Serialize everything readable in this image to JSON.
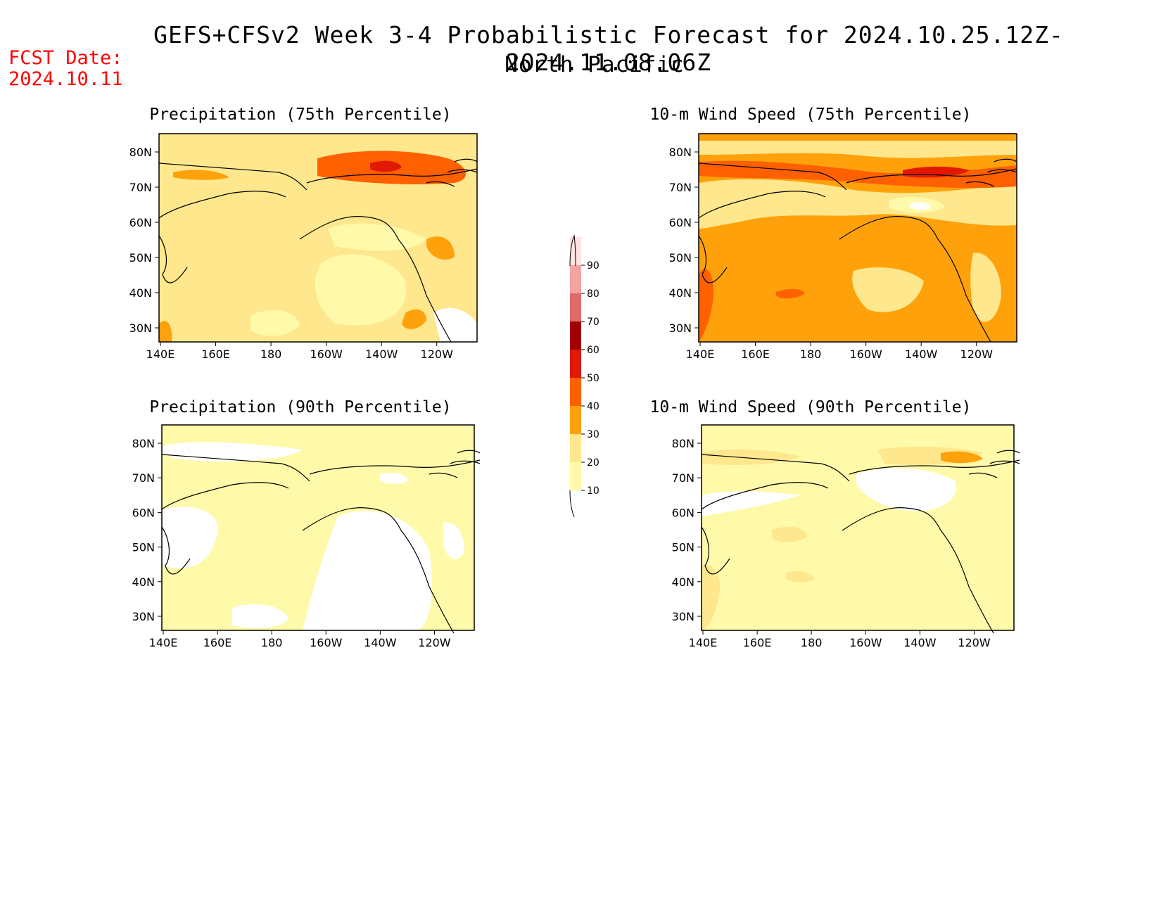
{
  "title": "GEFS+CFSv2 Week 3-4 Probabilistic Forecast for 2024.10.25.12Z-2024.11.08.06Z",
  "subtitle": "North Pacific",
  "fcst_date_label": "FCST Date:",
  "fcst_date_value": "2024.10.11",
  "panels": [
    {
      "title": "Precipitation (75th Percentile)",
      "base": "#fee78c"
    },
    {
      "title": "10-m Wind Speed (75th Percentile)",
      "base": "#ffa10a"
    },
    {
      "title": "Precipitation (90th Percentile)",
      "base": "#fffaaa"
    },
    {
      "title": "10-m Wind Speed (90th Percentile)",
      "base": "#fffaaa"
    }
  ],
  "lat_labels": [
    "80N",
    "70N",
    "60N",
    "50N",
    "40N",
    "30N"
  ],
  "lon_labels": [
    "140E",
    "160E",
    "180",
    "160W",
    "140W",
    "120W"
  ],
  "colorbar": {
    "levels": [
      "10",
      "20",
      "30",
      "40",
      "50",
      "60",
      "70",
      "80",
      "90"
    ],
    "colors": [
      "#fffaaa",
      "#fee78c",
      "#ffa10a",
      "#ff6000",
      "#e11900",
      "#a50000",
      "#e06a6a",
      "#f4a2a2",
      "#ffe2e2"
    ]
  }
}
